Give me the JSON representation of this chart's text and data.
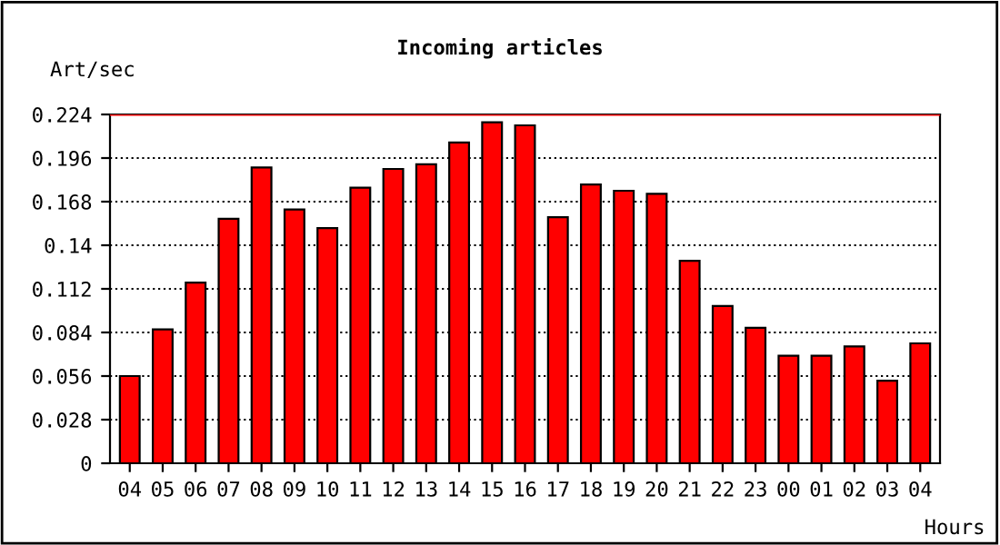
{
  "chart_data": {
    "type": "bar",
    "title": "Incoming articles",
    "ylabel": "Art/sec",
    "xlabel": "Hours",
    "categories": [
      "04",
      "05",
      "06",
      "07",
      "08",
      "09",
      "10",
      "11",
      "12",
      "13",
      "14",
      "15",
      "16",
      "17",
      "18",
      "19",
      "20",
      "21",
      "22",
      "23",
      "00",
      "01",
      "02",
      "03",
      "04"
    ],
    "values": [
      0.056,
      0.086,
      0.116,
      0.157,
      0.19,
      0.163,
      0.151,
      0.177,
      0.189,
      0.192,
      0.206,
      0.219,
      0.217,
      0.158,
      0.179,
      0.175,
      0.173,
      0.13,
      0.101,
      0.087,
      0.069,
      0.069,
      0.075,
      0.053,
      0.077
    ],
    "color": "#ff0000",
    "ylim": [
      0,
      0.224
    ],
    "yticks": [
      0,
      0.028,
      0.056,
      0.084,
      0.112,
      0.14,
      0.168,
      0.196,
      0.224
    ],
    "grid": "y",
    "line_style": "dotted",
    "ref_lines": [
      {
        "axis": "y",
        "value": 0.224,
        "color": "#ff0000"
      }
    ]
  }
}
